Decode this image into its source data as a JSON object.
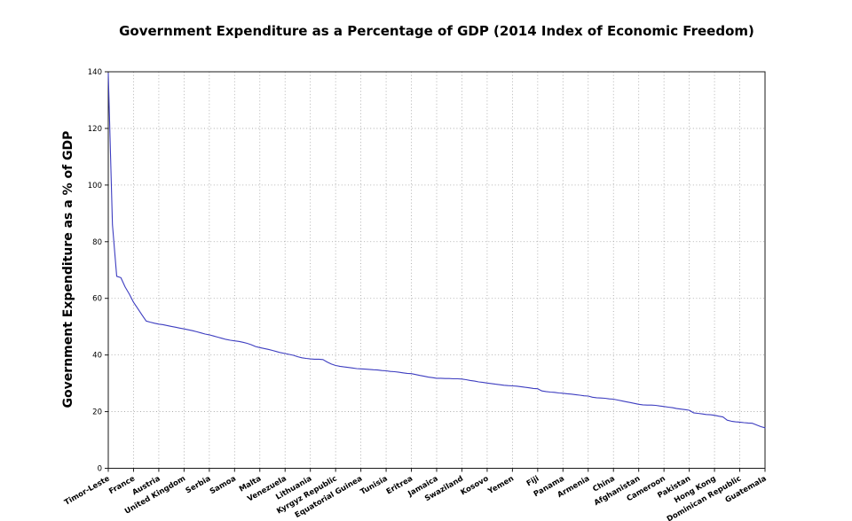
{
  "title": "Government Expenditure as a Percentage of GDP (2014 Index of Economic Freedom)",
  "chart_data": {
    "type": "line",
    "title": "Government Expenditure as a Percentage of GDP (2014 Index of Economic Freedom)",
    "xlabel": "",
    "ylabel": "Government Expenditure as a % of GDP",
    "ylim": [
      0,
      140
    ],
    "y_ticks": [
      0,
      20,
      40,
      60,
      80,
      100,
      120,
      140
    ],
    "grid": "dotted, horizontal and vertical at ticks",
    "legend": "none",
    "line_color": "#3d3dc0",
    "x_tick_rotation": 30,
    "points_per_label": 6,
    "x_tick_labels": [
      "Timor-Leste",
      "France",
      "Austria",
      "United Kingdom",
      "Serbia",
      "Samoa",
      "Malta",
      "Venezuela",
      "Lithuania",
      "Kyrgyz Republic",
      "Equatorial Guinea",
      "Tunisia",
      "Eritrea",
      "Jamaica",
      "Swaziland",
      "Kosovo",
      "Yemen",
      "Fiji",
      "Panama",
      "Armenia",
      "China",
      "Afghanistan",
      "Cameroon",
      "Pakistan",
      "Hong Kong",
      "Dominican Republic",
      "Guatemala"
    ],
    "labeled_values": {
      "Timor-Leste": 139.5,
      "France": 58.6,
      "Austria": 50.9,
      "United Kingdom": 49.2,
      "Serbia": 47.1,
      "Samoa": 45.0,
      "Malta": 42.6,
      "Venezuela": 40.5,
      "Lithuania": 38.6,
      "Kyrgyz Republic": 36.3,
      "Equatorial Guinea": 35.1,
      "Tunisia": 34.4,
      "Eritrea": 33.4,
      "Jamaica": 31.8,
      "Swaziland": 31.5,
      "Kosovo": 30.1,
      "Yemen": 29.1,
      "Fiji": 28.1,
      "Panama": 26.5,
      "Armenia": 25.5,
      "China": 24.4,
      "Afghanistan": 22.6,
      "Cameroon": 21.8,
      "Pakistan": 20.5,
      "Hong Kong": 18.7,
      "Dominican Republic": 16.3,
      "Guatemala": 14.3
    },
    "values": [
      139.5,
      86.0,
      67.8,
      67.3,
      64.0,
      61.5,
      58.6,
      56.4,
      54.2,
      52.0,
      51.6,
      51.2,
      50.9,
      50.7,
      50.4,
      50.1,
      49.8,
      49.5,
      49.2,
      48.9,
      48.6,
      48.2,
      47.8,
      47.4,
      47.1,
      46.7,
      46.3,
      45.9,
      45.5,
      45.2,
      45.0,
      44.8,
      44.5,
      44.1,
      43.6,
      43.0,
      42.6,
      42.3,
      42.0,
      41.6,
      41.2,
      40.8,
      40.5,
      40.2,
      39.9,
      39.4,
      39.0,
      38.8,
      38.6,
      38.5,
      38.5,
      38.4,
      37.5,
      36.8,
      36.3,
      36.0,
      35.8,
      35.6,
      35.4,
      35.2,
      35.1,
      35.0,
      34.9,
      34.8,
      34.7,
      34.5,
      34.4,
      34.2,
      34.1,
      33.9,
      33.7,
      33.5,
      33.4,
      33.1,
      32.8,
      32.5,
      32.2,
      32.0,
      31.8,
      31.8,
      31.7,
      31.7,
      31.6,
      31.6,
      31.5,
      31.3,
      31.0,
      30.8,
      30.5,
      30.3,
      30.1,
      29.9,
      29.7,
      29.5,
      29.3,
      29.2,
      29.1,
      29.0,
      28.8,
      28.6,
      28.4,
      28.2,
      28.1,
      27.3,
      27.1,
      26.9,
      26.8,
      26.6,
      26.5,
      26.3,
      26.2,
      26.0,
      25.8,
      25.6,
      25.5,
      25.1,
      24.9,
      24.8,
      24.7,
      24.5,
      24.4,
      24.1,
      23.8,
      23.5,
      23.2,
      22.9,
      22.6,
      22.4,
      22.3,
      22.3,
      22.2,
      22.0,
      21.8,
      21.6,
      21.4,
      21.1,
      20.9,
      20.7,
      20.5,
      19.6,
      19.4,
      19.2,
      19.0,
      18.9,
      18.7,
      18.4,
      18.1,
      17.0,
      16.6,
      16.4,
      16.3,
      16.1,
      16.0,
      15.9,
      15.3,
      14.7,
      14.3
    ]
  }
}
